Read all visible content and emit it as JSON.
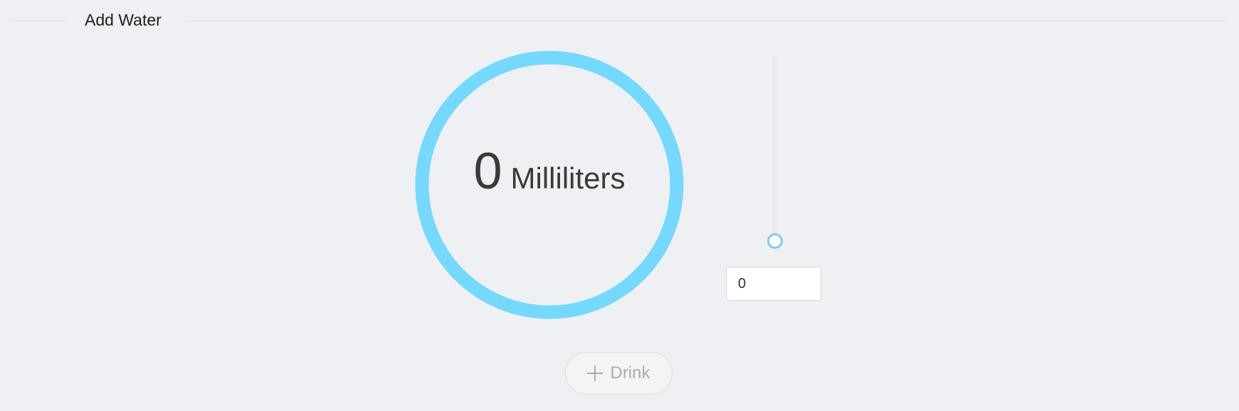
{
  "section": {
    "title": "Add Water"
  },
  "progress": {
    "value": "0",
    "unit": "Milliliters",
    "fraction": 0,
    "ring_color": "#75d8fd"
  },
  "slider": {
    "value": 0,
    "accent_color": "#7fcdf3"
  },
  "amount_input": {
    "value": "0"
  },
  "drink_button": {
    "label": "Drink",
    "icon": "plus-icon",
    "disabled": true
  }
}
